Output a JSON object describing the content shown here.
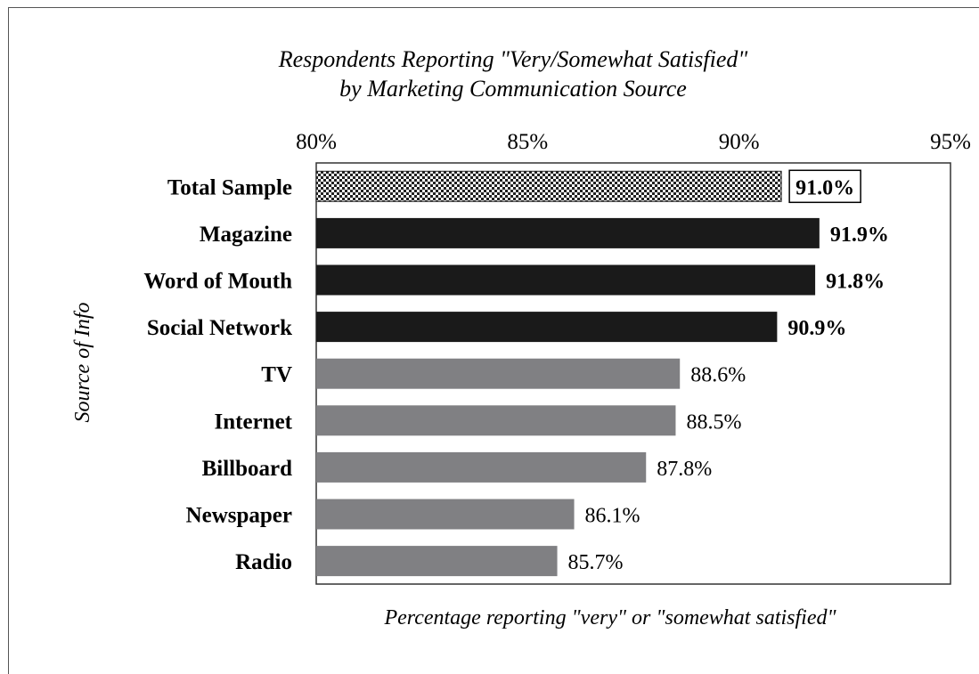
{
  "chart_data": {
    "type": "bar",
    "orientation": "horizontal",
    "title": "Respondents Reporting \"Very/Somewhat Satisfied\"",
    "subtitle": "by Marketing Communication Source",
    "xlabel": "Percentage reporting \"very\" or \"somewhat satisfied\"",
    "ylabel": "Source of Info",
    "xlim": [
      80,
      95
    ],
    "ticks": [
      "80%",
      "85%",
      "90%",
      "95%"
    ],
    "tick_values": [
      80,
      85,
      90,
      95
    ],
    "grid": false,
    "categories": [
      "Total Sample",
      "Magazine",
      "Word of Mouth",
      "Social Network",
      "TV",
      "Internet",
      "Billboard",
      "Newspaper",
      "Radio"
    ],
    "values": [
      91.0,
      91.9,
      91.8,
      90.9,
      88.6,
      88.5,
      87.8,
      86.1,
      85.7
    ],
    "value_labels": [
      "91.0%",
      "91.9%",
      "91.8%",
      "90.9%",
      "88.6%",
      "88.5%",
      "87.8%",
      "86.1%",
      "85.7%"
    ],
    "bar_styles": [
      "checkered",
      "black",
      "black",
      "black",
      "gray",
      "gray",
      "gray",
      "gray",
      "gray"
    ],
    "colors": {
      "black": "#1a1a1a",
      "gray": "#808083",
      "checker_dark": "#222222",
      "checker_light": "#ffffff"
    }
  }
}
